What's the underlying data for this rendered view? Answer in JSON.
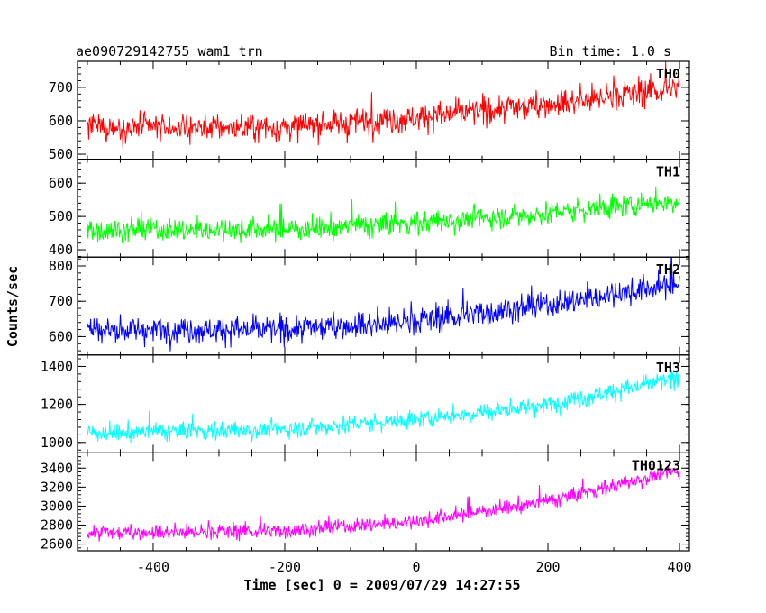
{
  "header": {
    "title": "ae090729142755_wam1_trn",
    "bin_time": "Bin time: 1.0 s"
  },
  "chart_data": {
    "type": "line",
    "xlabel": "Time [sec] 0 = 2009/07/29 14:27:55",
    "ylabel": "Counts/sec",
    "xlim": [
      -515,
      415
    ],
    "x_ticks": [
      -400,
      -200,
      0,
      200,
      400
    ],
    "x": {
      "start": -500,
      "end": 400,
      "step": 1
    },
    "panels": [
      {
        "name": "TH0",
        "color": "#ff0000",
        "ylim": [
          485,
          778
        ],
        "y_ticks": [
          500,
          600,
          700
        ],
        "trend": {
          "x": [
            -500,
            -200,
            0,
            200,
            400
          ],
          "y": [
            580,
            580,
            610,
            650,
            700
          ]
        },
        "noise": 38
      },
      {
        "name": "TH1",
        "color": "#00ff00",
        "ylim": [
          378,
          672
        ],
        "y_ticks": [
          400,
          500,
          600
        ],
        "trend": {
          "x": [
            -500,
            -200,
            0,
            200,
            400
          ],
          "y": [
            460,
            460,
            480,
            510,
            550
          ]
        },
        "noise": 33
      },
      {
        "name": "TH2",
        "color": "#0000ff",
        "ylim": [
          548,
          825
        ],
        "y_ticks": [
          600,
          700,
          800
        ],
        "trend": {
          "x": [
            -500,
            -200,
            0,
            200,
            400
          ],
          "y": [
            620,
            620,
            645,
            690,
            750
          ]
        },
        "noise": 35
      },
      {
        "name": "TH3",
        "color": "#00ffff",
        "ylim": [
          945,
          1460
        ],
        "y_ticks": [
          1000,
          1200,
          1400
        ],
        "trend": {
          "x": [
            -500,
            -200,
            0,
            200,
            400
          ],
          "y": [
            1050,
            1070,
            1120,
            1200,
            1340
          ]
        },
        "noise": 45
      },
      {
        "name": "TH0123",
        "color": "#ff00ff",
        "ylim": [
          2530,
          3560
        ],
        "y_ticks": [
          2600,
          2800,
          3000,
          3200,
          3400
        ],
        "trend": {
          "x": [
            -500,
            -200,
            0,
            200,
            400
          ],
          "y": [
            2720,
            2740,
            2840,
            3050,
            3380
          ]
        },
        "noise": 75
      }
    ]
  }
}
